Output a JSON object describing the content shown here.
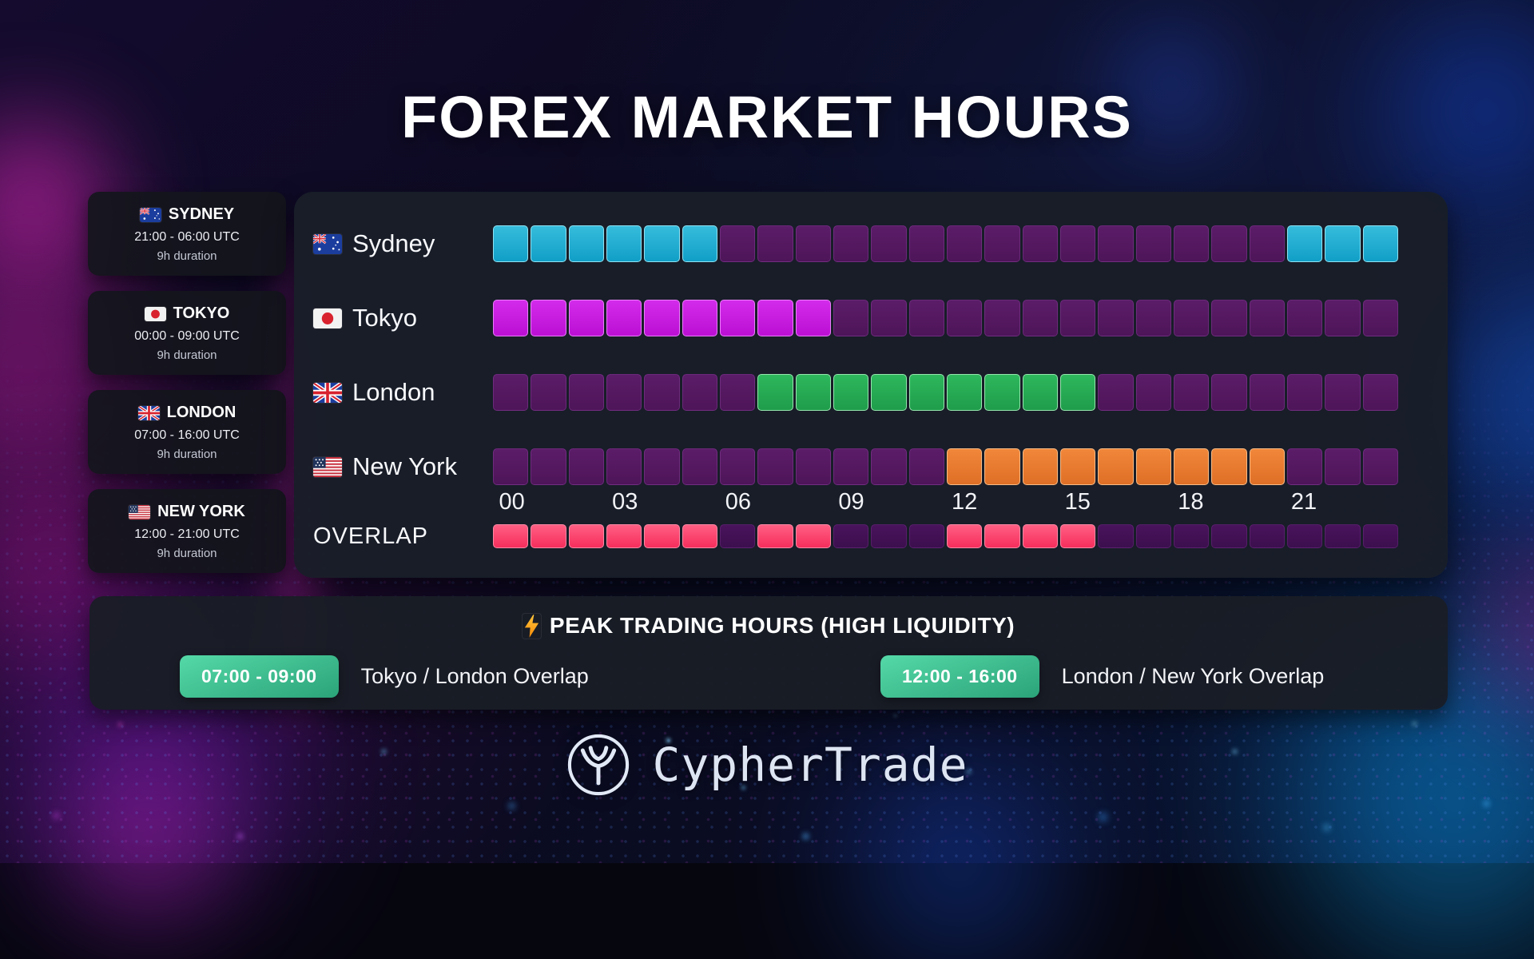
{
  "title": "FOREX MARKET HOURS",
  "session_cards": [
    {
      "flag": "au",
      "name": "SYDNEY",
      "hours": "21:00 - 06:00 UTC",
      "duration": "9h duration"
    },
    {
      "flag": "jp",
      "name": "TOKYO",
      "hours": "00:00 - 09:00 UTC",
      "duration": "9h duration"
    },
    {
      "flag": "gb",
      "name": "LONDON",
      "hours": "07:00 - 16:00 UTC",
      "duration": "9h duration"
    },
    {
      "flag": "us",
      "name": "NEW YORK",
      "hours": "12:00 - 21:00 UTC",
      "duration": "9h duration"
    }
  ],
  "chart_data": {
    "type": "heatmap",
    "title": "Forex market sessions by UTC hour",
    "x_unit": "hour_utc",
    "hours_per_row": 24,
    "x_ticks": [
      "00",
      "03",
      "06",
      "09",
      "12",
      "15",
      "18",
      "21"
    ],
    "tick_hours": [
      0,
      3,
      6,
      9,
      12,
      15,
      18,
      21
    ],
    "rows": [
      {
        "label": "Sydney",
        "flag": "au",
        "open_utc": "21:00",
        "close_utc": "06:00",
        "active_hours": [
          0,
          1,
          2,
          3,
          4,
          5,
          21,
          22,
          23
        ],
        "color": {
          "base": "#119FC7",
          "light": "#36BCDC",
          "border": "#8FE2F2"
        }
      },
      {
        "label": "Tokyo",
        "flag": "jp",
        "open_utc": "00:00",
        "close_utc": "09:00",
        "active_hours": [
          0,
          1,
          2,
          3,
          4,
          5,
          6,
          7,
          8
        ],
        "color": {
          "base": "#BB10D4",
          "light": "#D32BEB",
          "border": "#EA7CFA"
        }
      },
      {
        "label": "London",
        "flag": "gb",
        "open_utc": "07:00",
        "close_utc": "16:00",
        "active_hours": [
          7,
          8,
          9,
          10,
          11,
          12,
          13,
          14,
          15
        ],
        "color": {
          "base": "#1F9C4A",
          "light": "#2EB85D",
          "border": "#96E5AE"
        }
      },
      {
        "label": "New York",
        "flag": "us",
        "open_utc": "12:00",
        "close_utc": "21:00",
        "active_hours": [
          12,
          13,
          14,
          15,
          16,
          17,
          18,
          19,
          20
        ],
        "color": {
          "base": "#DE6F26",
          "light": "#F1873A",
          "border": "#F6BA85"
        }
      }
    ],
    "overlap": {
      "label": "OVERLAP",
      "active_hours": [
        0,
        1,
        2,
        3,
        4,
        5,
        7,
        8,
        12,
        13,
        14,
        15
      ],
      "color": {
        "base": "#F62E5C",
        "light": "#FF5F84",
        "border": "#FF87A4"
      }
    },
    "inactive_color": {
      "base": "#4E1559",
      "light": "#5B1C68"
    },
    "overlap_inactive_color": {
      "base": "#3C0F4E",
      "light": "#49135C"
    }
  },
  "peak_panel": {
    "icon": "lightning-bolt",
    "title": "PEAK TRADING HOURS (HIGH LIQUIDITY)",
    "items": [
      {
        "time": "07:00 - 09:00",
        "label": "Tokyo / London Overlap"
      },
      {
        "time": "12:00 - 16:00",
        "label": "London / New York Overlap"
      }
    ],
    "badge_color": {
      "from": "#55D9A8",
      "to": "#2BA379"
    }
  },
  "footer": {
    "brand": "CypherTrade"
  }
}
